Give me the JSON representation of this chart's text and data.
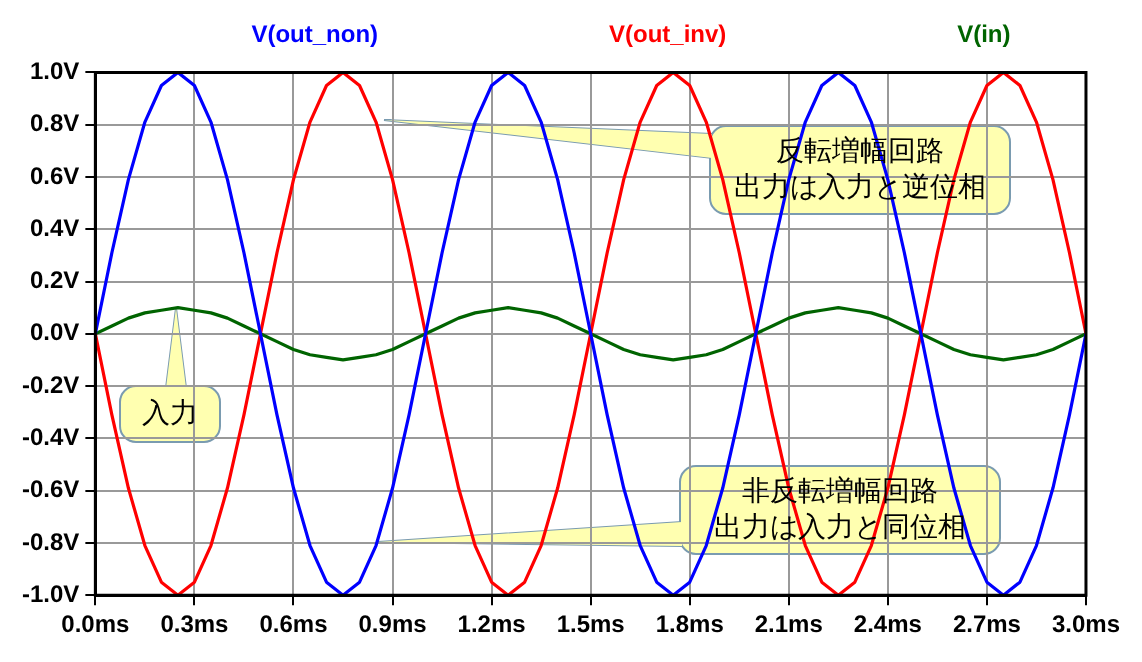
{
  "chart_data": {
    "type": "line",
    "x": [
      0,
      0.05,
      0.1,
      0.15,
      0.2,
      0.25,
      0.3,
      0.35,
      0.4,
      0.45,
      0.5,
      0.55,
      0.6,
      0.65,
      0.7,
      0.75,
      0.8,
      0.85,
      0.9,
      0.95,
      1,
      1.05,
      1.1,
      1.15,
      1.2,
      1.25,
      1.3,
      1.35,
      1.4,
      1.45,
      1.5,
      1.55,
      1.6,
      1.65,
      1.7,
      1.75,
      1.8,
      1.85,
      1.9,
      1.95,
      2,
      2.05,
      2.1,
      2.15,
      2.2,
      2.25,
      2.3,
      2.35,
      2.4,
      2.45,
      2.5,
      2.55,
      2.6,
      2.65,
      2.7,
      2.75,
      2.8,
      2.85,
      2.9,
      2.95,
      3
    ],
    "series": [
      {
        "name": "V(out_non)",
        "color": "#0000ff",
        "values": [
          0,
          0.31,
          0.59,
          0.81,
          0.95,
          1,
          0.95,
          0.81,
          0.59,
          0.31,
          0,
          -0.31,
          -0.59,
          -0.81,
          -0.95,
          -1,
          -0.95,
          -0.81,
          -0.59,
          -0.31,
          0,
          0.31,
          0.59,
          0.81,
          0.95,
          1,
          0.95,
          0.81,
          0.59,
          0.31,
          0,
          -0.31,
          -0.59,
          -0.81,
          -0.95,
          -1,
          -0.95,
          -0.81,
          -0.59,
          -0.31,
          0,
          0.31,
          0.59,
          0.81,
          0.95,
          1,
          0.95,
          0.81,
          0.59,
          0.31,
          0,
          -0.31,
          -0.59,
          -0.81,
          -0.95,
          -1,
          -0.95,
          -0.81,
          -0.59,
          -0.31,
          0
        ]
      },
      {
        "name": "V(out_inv)",
        "color": "#ff0000",
        "values": [
          0,
          -0.31,
          -0.59,
          -0.81,
          -0.95,
          -1,
          -0.95,
          -0.81,
          -0.59,
          -0.31,
          0,
          0.31,
          0.59,
          0.81,
          0.95,
          1,
          0.95,
          0.81,
          0.59,
          0.31,
          0,
          -0.31,
          -0.59,
          -0.81,
          -0.95,
          -1,
          -0.95,
          -0.81,
          -0.59,
          -0.31,
          0,
          0.31,
          0.59,
          0.81,
          0.95,
          1,
          0.95,
          0.81,
          0.59,
          0.31,
          0,
          -0.31,
          -0.59,
          -0.81,
          -0.95,
          -1,
          -0.95,
          -0.81,
          -0.59,
          -0.31,
          0,
          0.31,
          0.59,
          0.81,
          0.95,
          1,
          0.95,
          0.81,
          0.59,
          0.31,
          0
        ]
      },
      {
        "name": "V(in)",
        "color": "#006400",
        "values": [
          0,
          0.03,
          0.06,
          0.08,
          0.09,
          0.1,
          0.09,
          0.08,
          0.06,
          0.03,
          0,
          -0.03,
          -0.06,
          -0.08,
          -0.09,
          -0.1,
          -0.09,
          -0.08,
          -0.06,
          -0.03,
          0,
          0.03,
          0.06,
          0.08,
          0.09,
          0.1,
          0.09,
          0.08,
          0.06,
          0.03,
          0,
          -0.03,
          -0.06,
          -0.08,
          -0.09,
          -0.1,
          -0.09,
          -0.08,
          -0.06,
          -0.03,
          0,
          0.03,
          0.06,
          0.08,
          0.09,
          0.1,
          0.09,
          0.08,
          0.06,
          0.03,
          0,
          -0.03,
          -0.06,
          -0.08,
          -0.09,
          -0.1,
          -0.09,
          -0.08,
          -0.06,
          -0.03,
          0
        ]
      }
    ],
    "xlim": [
      0,
      3
    ],
    "xticks": [
      {
        "value": 0,
        "label": "0.0ms"
      },
      {
        "value": 0.3,
        "label": "0.3ms"
      },
      {
        "value": 0.6,
        "label": "0.6ms"
      },
      {
        "value": 0.9,
        "label": "0.9ms"
      },
      {
        "value": 1.2,
        "label": "1.2ms"
      },
      {
        "value": 1.5,
        "label": "1.5ms"
      },
      {
        "value": 1.8,
        "label": "1.8ms"
      },
      {
        "value": 2.1,
        "label": "2.1ms"
      },
      {
        "value": 2.4,
        "label": "2.4ms"
      },
      {
        "value": 2.7,
        "label": "2.7ms"
      },
      {
        "value": 3,
        "label": "3.0ms"
      }
    ],
    "ylim": [
      -1,
      1
    ],
    "yticks": [
      {
        "value": -1,
        "label": "-1.0V"
      },
      {
        "value": -0.8,
        "label": "-0.8V"
      },
      {
        "value": -0.6,
        "label": "-0.6V"
      },
      {
        "value": -0.4,
        "label": "-0.4V"
      },
      {
        "value": -0.2,
        "label": "-0.2V"
      },
      {
        "value": 0,
        "label": "0.0V"
      },
      {
        "value": 0.2,
        "label": "0.2V"
      },
      {
        "value": 0.4,
        "label": "0.4V"
      },
      {
        "value": 0.6,
        "label": "0.6V"
      },
      {
        "value": 0.8,
        "label": "0.8V"
      },
      {
        "value": 1,
        "label": "1.0V"
      }
    ],
    "grid": true,
    "legend": "top",
    "marker": "none",
    "line_style": "solid",
    "annotations": [
      "反転増幅回路",
      "出力は入力と逆位相",
      "非反転増幅回路",
      "出力は入力と同位相",
      "入力"
    ]
  }
}
